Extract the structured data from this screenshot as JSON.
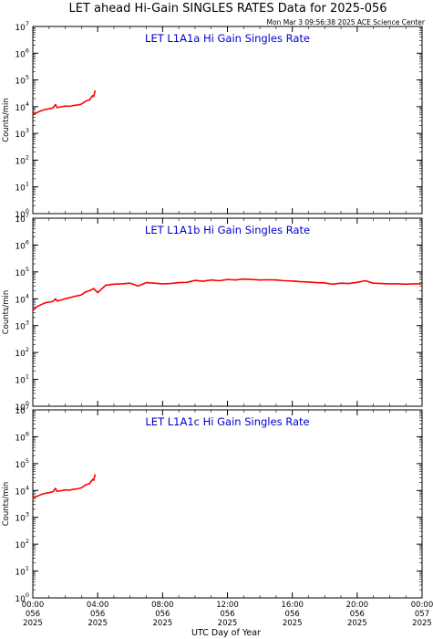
{
  "header": {
    "title": "LET ahead Hi-Gain SINGLES RATES Data for 2025-056",
    "timestamp": "Mon Mar  3 09:56:38 2025 ACE Science Center"
  },
  "colors": {
    "series": "#ff0000",
    "panel_title": "#0000cc",
    "axis": "#000000"
  },
  "chart_data": [
    {
      "type": "line",
      "title": "LET L1A1a Hi Gain Singles Rate",
      "ylabel": "Counts/min",
      "yscale": "log",
      "ylim": [
        1,
        10000000
      ],
      "xlim": [
        0,
        24
      ],
      "y_ticks": [
        {
          "base": "10",
          "exp": "0",
          "v": 1
        },
        {
          "base": "10",
          "exp": "1",
          "v": 10
        },
        {
          "base": "10",
          "exp": "2",
          "v": 100
        },
        {
          "base": "10",
          "exp": "3",
          "v": 1000
        },
        {
          "base": "10",
          "exp": "4",
          "v": 10000
        },
        {
          "base": "10",
          "exp": "5",
          "v": 100000
        },
        {
          "base": "10",
          "exp": "6",
          "v": 1000000
        },
        {
          "base": "10",
          "exp": "7",
          "v": 10000000
        }
      ],
      "series": [
        {
          "x": [
            0,
            0.25,
            0.5,
            0.75,
            1.0,
            1.25,
            1.4,
            1.5,
            1.6,
            1.75,
            2.0,
            2.25,
            2.5,
            2.75,
            3.0,
            3.25,
            3.5,
            3.6,
            3.7,
            3.75,
            3.85
          ],
          "y": [
            5000,
            6000,
            7000,
            7800,
            8300,
            9000,
            12000,
            9200,
            9500,
            9800,
            10500,
            10300,
            11000,
            11500,
            12500,
            16000,
            18000,
            22000,
            26000,
            24000,
            40000
          ]
        }
      ]
    },
    {
      "type": "line",
      "title": "LET L1A1b Hi Gain Singles Rate",
      "ylabel": "Counts/min",
      "yscale": "log",
      "ylim": [
        1,
        10000000
      ],
      "xlim": [
        0,
        24
      ],
      "y_ticks": [
        {
          "base": "10",
          "exp": "0",
          "v": 1
        },
        {
          "base": "10",
          "exp": "1",
          "v": 10
        },
        {
          "base": "10",
          "exp": "2",
          "v": 100
        },
        {
          "base": "10",
          "exp": "3",
          "v": 1000
        },
        {
          "base": "10",
          "exp": "4",
          "v": 10000
        },
        {
          "base": "10",
          "exp": "5",
          "v": 100000
        },
        {
          "base": "10",
          "exp": "6",
          "v": 1000000
        },
        {
          "base": "10",
          "exp": "7",
          "v": 10000000
        }
      ],
      "series": [
        {
          "x": [
            0,
            0.25,
            0.5,
            0.75,
            1.0,
            1.25,
            1.4,
            1.5,
            1.75,
            2.0,
            2.5,
            3.0,
            3.25,
            3.5,
            3.75,
            4.0,
            4.5,
            5.0,
            5.5,
            6.0,
            6.5,
            7.0,
            7.5,
            8.0,
            8.5,
            9.0,
            9.5,
            10.0,
            10.5,
            11.0,
            11.5,
            12.0,
            12.5,
            13.0,
            13.5,
            14.0,
            14.5,
            15.0,
            15.5,
            16.0,
            16.5,
            17.0,
            17.5,
            18.0,
            18.5,
            19.0,
            19.5,
            20.0,
            20.5,
            21.0,
            21.5,
            22.0,
            22.5,
            23.0,
            23.5,
            24.0
          ],
          "y": [
            3800,
            5000,
            6000,
            7000,
            7500,
            8000,
            10000,
            8200,
            9000,
            10000,
            12000,
            14000,
            18000,
            20000,
            24000,
            17000,
            32000,
            35000,
            36000,
            38000,
            30000,
            40000,
            38000,
            36000,
            37000,
            40000,
            41000,
            48000,
            45000,
            50000,
            47000,
            52000,
            50000,
            54000,
            52000,
            50000,
            51000,
            50000,
            47000,
            46000,
            43000,
            42000,
            40000,
            39000,
            35000,
            38000,
            37000,
            41000,
            47000,
            38000,
            37000,
            36000,
            36000,
            35000,
            36000,
            36000
          ]
        }
      ]
    },
    {
      "type": "line",
      "title": "LET L1A1c Hi Gain Singles Rate",
      "ylabel": "Counts/min",
      "yscale": "log",
      "ylim": [
        1,
        10000000
      ],
      "xlim": [
        0,
        24
      ],
      "xlabel": "UTC Day of Year",
      "x_ticks": [
        {
          "v": 0,
          "time": "00:00",
          "doy": "056",
          "year": "2025"
        },
        {
          "v": 4,
          "time": "04:00",
          "doy": "056",
          "year": "2025"
        },
        {
          "v": 8,
          "time": "08:00",
          "doy": "056",
          "year": "2025"
        },
        {
          "v": 12,
          "time": "12:00",
          "doy": "056",
          "year": "2025"
        },
        {
          "v": 16,
          "time": "16:00",
          "doy": "056",
          "year": "2025"
        },
        {
          "v": 20,
          "time": "20:00",
          "doy": "056",
          "year": "2025"
        },
        {
          "v": 24,
          "time": "00:00",
          "doy": "057",
          "year": "2025"
        }
      ],
      "y_ticks": [
        {
          "base": "10",
          "exp": "0",
          "v": 1
        },
        {
          "base": "10",
          "exp": "1",
          "v": 10
        },
        {
          "base": "10",
          "exp": "2",
          "v": 100
        },
        {
          "base": "10",
          "exp": "3",
          "v": 1000
        },
        {
          "base": "10",
          "exp": "4",
          "v": 10000
        },
        {
          "base": "10",
          "exp": "5",
          "v": 100000
        },
        {
          "base": "10",
          "exp": "6",
          "v": 1000000
        },
        {
          "base": "10",
          "exp": "7",
          "v": 10000000
        }
      ],
      "series": [
        {
          "x": [
            0,
            0.25,
            0.5,
            0.75,
            1.0,
            1.25,
            1.4,
            1.5,
            1.6,
            1.75,
            2.0,
            2.25,
            2.5,
            2.75,
            3.0,
            3.25,
            3.5,
            3.6,
            3.7,
            3.75,
            3.85
          ],
          "y": [
            5000,
            6000,
            7000,
            7800,
            8300,
            9000,
            12000,
            9200,
            9500,
            9800,
            10500,
            10300,
            11000,
            11500,
            12500,
            16000,
            18000,
            22000,
            26000,
            24000,
            40000
          ]
        }
      ]
    }
  ]
}
